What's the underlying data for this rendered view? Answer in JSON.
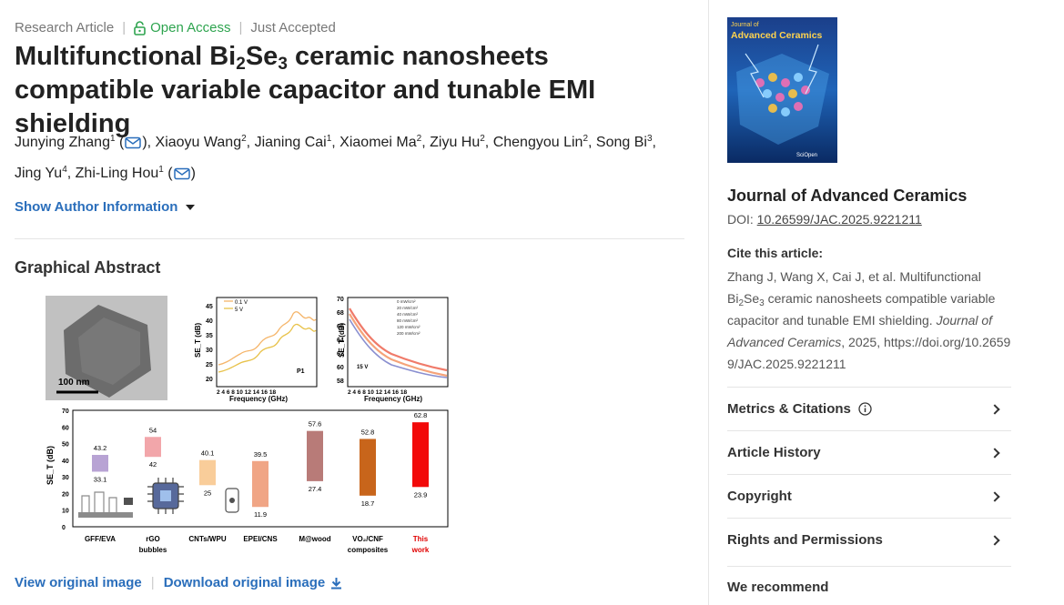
{
  "meta": {
    "article_type": "Research Article",
    "open_access": "Open Access",
    "status": "Just Accepted"
  },
  "title": {
    "part1": "Multifunctional Bi",
    "sub1": "2",
    "part2": "Se",
    "sub2": "3",
    "part3": " ceramic nanosheets compatible variable capacitor and tunable EMI shielding"
  },
  "authors": [
    {
      "name": "Junying Zhang",
      "aff": "1",
      "email": true,
      "sep": ", "
    },
    {
      "name": "Xiaoyu Wang",
      "aff": "2",
      "email": false,
      "sep": ", "
    },
    {
      "name": "Jianing Cai",
      "aff": "1",
      "email": false,
      "sep": ", "
    },
    {
      "name": "Xiaomei Ma",
      "aff": "2",
      "email": false,
      "sep": ", "
    },
    {
      "name": "Ziyu Hu",
      "aff": "2",
      "email": false,
      "sep": ", "
    },
    {
      "name": "Chengyou Lin",
      "aff": "2",
      "email": false,
      "sep": ", "
    },
    {
      "name": "Song Bi",
      "aff": "3",
      "email": false,
      "sep": ", "
    },
    {
      "name": "Jing Yu",
      "aff": "4",
      "email": false,
      "sep": ", "
    },
    {
      "name": "Zhi-Ling Hou",
      "aff": "1",
      "email": true,
      "sep": ""
    }
  ],
  "show_author_info": "Show Author Information",
  "graphical_abstract": {
    "heading": "Graphical Abstract",
    "scale_bar": "100 nm",
    "p1_legend": [
      "0.1 V",
      "5 V"
    ],
    "p1_label": "P1",
    "p1_yaxis": "SE_T (dB)",
    "p1_xaxis": "Frequency (GHz)",
    "p1_yticks": [
      "20",
      "25",
      "30",
      "35",
      "40",
      "45"
    ],
    "p1_xticks": [
      "2",
      "4",
      "6",
      "8",
      "10",
      "12",
      "14",
      "16",
      "18"
    ],
    "p2_legend": [
      "0 mW/cm²",
      "20 mW/cm²",
      "40 mW/cm²",
      "80 mW/cm²",
      "120 mW/cm²",
      "200 mW/cm²"
    ],
    "p2_label": "15 V",
    "p2_yaxis": "SE_T (dB)",
    "p2_xaxis": "Frequency (GHz)",
    "p2_yticks": [
      "58",
      "60",
      "62",
      "64",
      "66",
      "68",
      "70"
    ],
    "p2_xticks": [
      "2",
      "4",
      "6",
      "8",
      "10",
      "12",
      "14",
      "16",
      "18"
    ],
    "bar_yaxis": "SE_T (dB)",
    "bar_yticks": [
      "0",
      "10",
      "20",
      "30",
      "40",
      "50",
      "60",
      "70"
    ],
    "bars": [
      {
        "label": "GFF/EVA",
        "top": "43.2",
        "bottom": "33.1",
        "color": "#b8a3d4",
        "highlight": false
      },
      {
        "label": "rGO bubbles",
        "top": "54",
        "bottom": "42",
        "color": "#f2a6aa",
        "highlight": false
      },
      {
        "label": "CNTs/WPU",
        "top": "40.1",
        "bottom": "25",
        "color": "#f9cd9a",
        "highlight": false
      },
      {
        "label": "EPEI/CNS",
        "top": "39.5",
        "bottom": "11.9",
        "color": "#f0a585",
        "highlight": false
      },
      {
        "label": "M@wood",
        "top": "57.6",
        "bottom": "27.4",
        "color": "#b87b78",
        "highlight": false
      },
      {
        "label": "VO₂/CNF composites",
        "top": "52.8",
        "bottom": "18.7",
        "color": "#c8651b",
        "highlight": false
      },
      {
        "label": "This work",
        "top": "62.8",
        "bottom": "23.9",
        "color": "#f20a0a",
        "highlight": true
      }
    ],
    "view_link": "View original image",
    "download_link": "Download original image"
  },
  "sidebar": {
    "cover_title_line1": "Journal of",
    "cover_title_line2": "Advanced Ceramics",
    "cover_publisher": "SciOpen",
    "journal_name": "Journal of Advanced Ceramics",
    "doi_label": "DOI: ",
    "doi_value": "10.26599/JAC.2025.9221211",
    "cite_label": "Cite this article:",
    "cite_part1": "Zhang J, Wang X, Cai J, et al. Multifunctional Bi",
    "cite_sub1": "2",
    "cite_part2": "Se",
    "cite_sub2": "3",
    "cite_part3": " ceramic nanosheets compatible variable capacitor and tunable EMI shielding. ",
    "cite_journal": "Journal of Advanced Ceramics",
    "cite_part4": ", 2025, https://doi.org/10.26599/JAC.2025.9221211",
    "accordion": [
      "Metrics & Citations",
      "Article History",
      "Copyright",
      "Rights and Permissions"
    ],
    "recommend": "We recommend"
  },
  "colors": {
    "link": "#2a6ebb",
    "open_access": "#2ea44f",
    "line_p1_a": "#f5b56a",
    "line_p1_b": "#e8c24a"
  }
}
